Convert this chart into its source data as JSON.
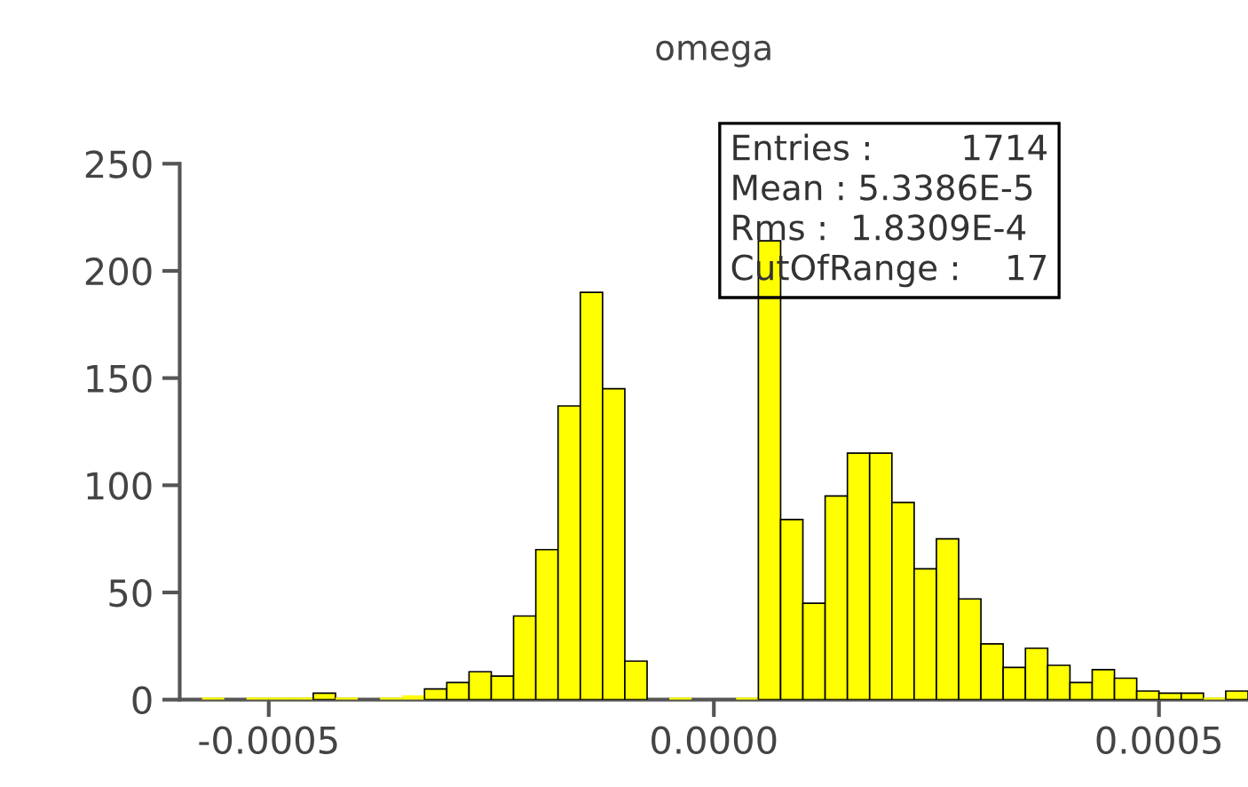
{
  "chart_data": {
    "type": "histogram",
    "title": "omega",
    "bins": [
      -0.0006,
      -0.000575,
      -0.00055,
      -0.000525,
      -0.0005,
      -0.000475,
      -0.00045,
      -0.000425,
      -0.0004,
      -0.000375,
      -0.00035,
      -0.000325,
      -0.0003,
      -0.000275,
      -0.00025,
      -0.000225,
      -0.0002,
      -0.000175,
      -0.00015,
      -0.000125,
      -0.0001,
      -7.5e-05,
      -5e-05,
      -2.5e-05,
      0,
      2.5e-05,
      5e-05,
      7.5e-05,
      0.0001,
      0.000125,
      0.00015,
      0.000175,
      0.0002,
      0.000225,
      0.00025,
      0.000275,
      0.0003,
      0.000325,
      0.00035,
      0.000375,
      0.0004,
      0.000425,
      0.00045,
      0.000475,
      0.0005,
      0.000525,
      0.00055,
      0.000575,
      0.0006
    ],
    "values": [
      0,
      1,
      0,
      1,
      1,
      1,
      3,
      1,
      0,
      1,
      2,
      5,
      8,
      13,
      11,
      39,
      70,
      137,
      190,
      145,
      18,
      0,
      1,
      0,
      0,
      1,
      214,
      84,
      45,
      95,
      115,
      115,
      92,
      61,
      75,
      47,
      26,
      15,
      24,
      16,
      8,
      14,
      10,
      4,
      3,
      3,
      1,
      4
    ],
    "color": "#ffff00",
    "xlim": [
      -0.0006,
      0.0006
    ],
    "xticks": [
      {
        "value": -0.0005,
        "label": "-0.0005"
      },
      {
        "value": 0,
        "label": "0.0000"
      },
      {
        "value": 0.0005,
        "label": "0.0005"
      }
    ],
    "ylim": [
      0,
      250
    ],
    "yticks": [
      0,
      50,
      100,
      150,
      200,
      250
    ],
    "annotations": [
      "Entries :        1714",
      "Mean : 5.3386E-5",
      "Rms :  1.8309E-4",
      "CutOfRange :    17"
    ],
    "grid": false,
    "legend": false
  }
}
